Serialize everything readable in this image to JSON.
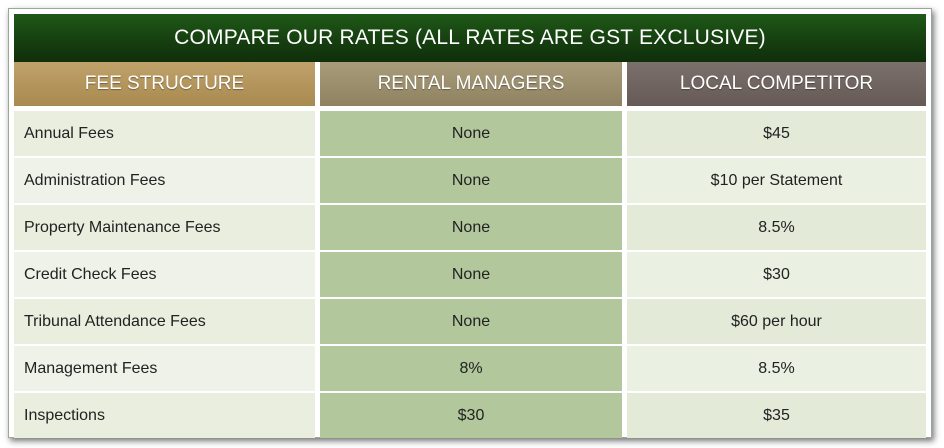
{
  "title": "COMPARE OUR RATES (ALL RATES ARE GST EXCLUSIVE)",
  "headers": [
    "FEE STRUCTURE",
    "RENTAL MANAGERS",
    "LOCAL COMPETITOR"
  ],
  "rows": [
    {
      "fee": "Annual Fees",
      "ours": "None",
      "theirs": "$45"
    },
    {
      "fee": "Administration Fees",
      "ours": "None",
      "theirs": "$10 per Statement"
    },
    {
      "fee": "Property Maintenance Fees",
      "ours": "None",
      "theirs": "8.5%"
    },
    {
      "fee": "Credit Check Fees",
      "ours": "None",
      "theirs": "$30"
    },
    {
      "fee": "Tribunal Attendance Fees",
      "ours": "None",
      "theirs": "$60 per hour"
    },
    {
      "fee": "Management Fees",
      "ours": "8%",
      "theirs": "8.5%"
    },
    {
      "fee": "Inspections",
      "ours": "$30",
      "theirs": "$35"
    }
  ],
  "colors": {
    "title_bar": "#163f10",
    "header_fee": "#b39656",
    "header_ours": "#9a8d6b",
    "header_theirs": "#716562",
    "ours_cell": "#b2c89c",
    "label_cell": "#e9eedf"
  }
}
